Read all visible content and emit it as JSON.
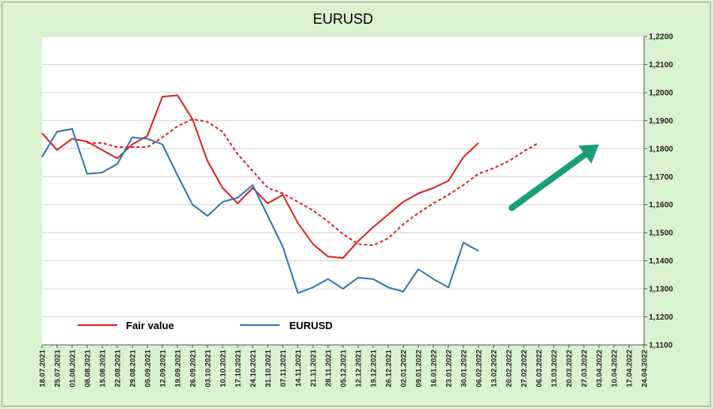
{
  "chart_data": {
    "type": "line",
    "title": "EURUSD",
    "xlabel": "",
    "ylabel": "",
    "x": [
      "18.07.2021",
      "25.07.2021",
      "01.08.2021",
      "08.08.2021",
      "15.08.2021",
      "22.08.2021",
      "29.08.2021",
      "05.09.2021",
      "12.09.2021",
      "19.09.2021",
      "26.09.2021",
      "03.10.2021",
      "10.10.2021",
      "17.10.2021",
      "24.10.2021",
      "31.10.2021",
      "07.11.2021",
      "14.11.2021",
      "21.11.2021",
      "28.11.2021",
      "05.12.2021",
      "12.12.2021",
      "19.12.2021",
      "26.12.2021",
      "02.01.2022",
      "09.01.2022",
      "16.01.2022",
      "23.01.2022",
      "30.01.2022",
      "06.02.2022",
      "13.02.2022",
      "20.02.2022",
      "27.02.2022",
      "06.03.2022",
      "13.03.2022",
      "20.03.2022",
      "27.03.2022",
      "03.04.2022",
      "10.04.2022",
      "17.04.2022",
      "24.04.2022"
    ],
    "ylim": [
      1.11,
      1.22
    ],
    "yticks": [
      "1,1100",
      "1,1200",
      "1,1300",
      "1,1400",
      "1,1500",
      "1,1600",
      "1,1700",
      "1,1800",
      "1,1900",
      "1,2000",
      "1,2100",
      "1,2200"
    ],
    "y_axis_side": "right",
    "grid": "horizontal",
    "legend_placement": "bottom-left",
    "series": [
      {
        "name": "Fair value",
        "color": "#e02020",
        "style": "solid",
        "values": [
          1.1855,
          1.1795,
          1.1835,
          1.1825,
          1.1795,
          1.1765,
          1.1815,
          1.1845,
          1.1985,
          1.199,
          1.1905,
          1.1755,
          1.166,
          1.1605,
          1.166,
          1.1605,
          1.1635,
          1.1535,
          1.146,
          1.1415,
          1.141,
          1.147,
          1.152,
          1.1565,
          1.161,
          1.164,
          1.166,
          1.1685,
          1.177,
          1.182,
          null,
          null,
          null,
          null,
          null,
          null,
          null,
          null,
          null,
          null,
          null
        ]
      },
      {
        "name": "",
        "color": "#e02020",
        "style": "dashed",
        "values": [
          null,
          null,
          null,
          1.182,
          1.182,
          1.1805,
          1.1805,
          1.1805,
          1.184,
          1.188,
          1.1905,
          1.1895,
          1.186,
          1.178,
          1.172,
          1.166,
          1.164,
          1.161,
          1.158,
          1.154,
          1.1495,
          1.146,
          1.1455,
          1.148,
          1.153,
          1.157,
          1.1605,
          1.1635,
          1.167,
          1.171,
          1.173,
          1.1755,
          1.179,
          1.182,
          null,
          null,
          null,
          null,
          null,
          null,
          null
        ]
      },
      {
        "name": "EURUSD",
        "color": "#2e75b6",
        "style": "solid",
        "values": [
          1.177,
          1.186,
          1.187,
          1.171,
          1.1715,
          1.1745,
          1.184,
          1.1835,
          1.1815,
          1.1705,
          1.16,
          1.156,
          1.161,
          1.1625,
          1.167,
          1.156,
          1.145,
          1.1285,
          1.1305,
          1.1335,
          1.13,
          1.134,
          1.1335,
          1.1305,
          1.129,
          1.137,
          1.1335,
          1.1305,
          1.1465,
          1.1435,
          null,
          null,
          null,
          null,
          null,
          null,
          null,
          null,
          null,
          null,
          null
        ]
      }
    ],
    "annotations": [
      {
        "type": "arrow",
        "color": "#1a9e7a",
        "from": {
          "x": "20.02.2022",
          "y": 1.16
        },
        "to": {
          "x": "03.04.2022",
          "y": 1.1815
        }
      }
    ]
  }
}
